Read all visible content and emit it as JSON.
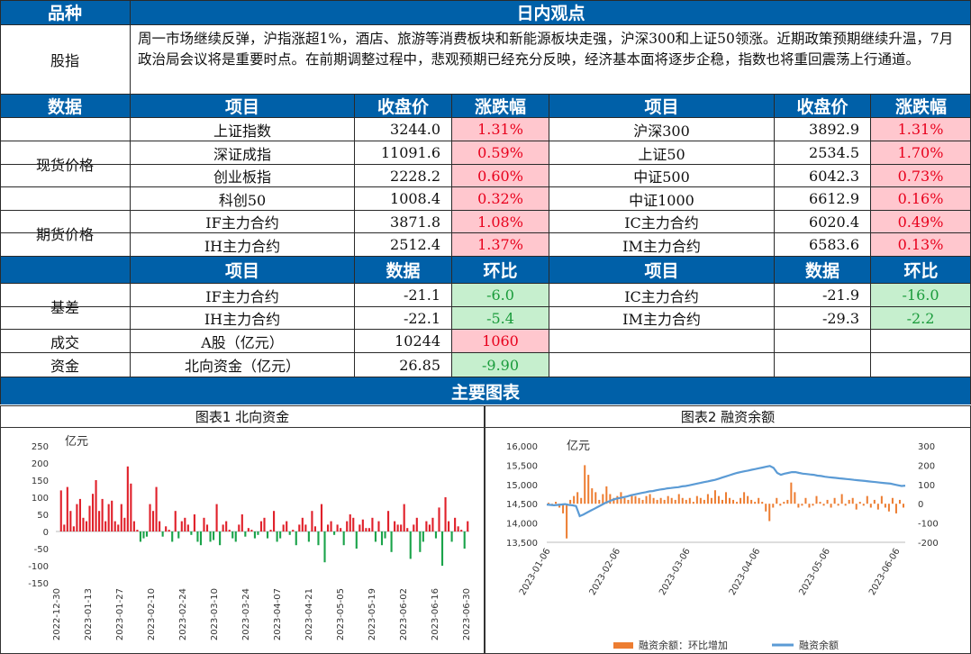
{
  "header": {
    "col1": "品种",
    "col2": "日内观点"
  },
  "index_view": {
    "label": "股指",
    "text": "周一市场继续反弹，沪指涨超1%，酒店、旅游等消费板块和新能源板块走强，沪深300和上证50领涨。近期政策预期继续升温，7月政治局会议将是重要时点。在前期调整过程中，悲观预期已经充分反映，经济基本面将逐步企稳，指数也将重回震荡上行通道。"
  },
  "prices_header": {
    "section": "数据",
    "item": "项目",
    "close": "收盘价",
    "change": "涨跌幅"
  },
  "spot": {
    "label": "现货价格",
    "rows": [
      {
        "l_name": "上证指数",
        "l_close": "3244.0",
        "l_chg": "1.31%",
        "r_name": "沪深300",
        "r_close": "3892.9",
        "r_chg": "1.31%"
      },
      {
        "l_name": "深证成指",
        "l_close": "11091.6",
        "l_chg": "0.59%",
        "r_name": "上证50",
        "r_close": "2534.5",
        "r_chg": "1.70%"
      },
      {
        "l_name": "创业板指",
        "l_close": "2228.2",
        "l_chg": "0.60%",
        "r_name": "中证500",
        "r_close": "6042.3",
        "r_chg": "0.73%"
      },
      {
        "l_name": "科创50",
        "l_close": "1008.4",
        "l_chg": "0.32%",
        "r_name": "中证1000",
        "r_close": "6612.9",
        "r_chg": "0.16%"
      }
    ]
  },
  "futures": {
    "label": "期货价格",
    "rows": [
      {
        "l_name": "IF主力合约",
        "l_close": "3871.8",
        "l_chg": "1.08%",
        "r_name": "IC主力合约",
        "r_close": "6020.4",
        "r_chg": "0.49%"
      },
      {
        "l_name": "IH主力合约",
        "l_close": "2512.4",
        "l_chg": "1.37%",
        "r_name": "IM主力合约",
        "r_close": "6583.6",
        "r_chg": "0.13%"
      }
    ]
  },
  "data_header": {
    "item": "项目",
    "data": "数据",
    "qoq": "环比"
  },
  "basis": {
    "label": "基差",
    "rows": [
      {
        "l_name": "IF主力合约",
        "l_val": "-21.1",
        "l_qoq": "-6.0",
        "r_name": "IC主力合约",
        "r_val": "-21.9",
        "r_qoq": "-16.0"
      },
      {
        "l_name": "IH主力合约",
        "l_val": "-22.1",
        "l_qoq": "-5.4",
        "r_name": "IM主力合约",
        "r_val": "-29.3",
        "r_qoq": "-2.2"
      }
    ]
  },
  "turnover": {
    "label": "成交",
    "name": "A股（亿元）",
    "val": "10244",
    "qoq": "1060"
  },
  "capital": {
    "label": "资金",
    "name": "北向资金（亿元）",
    "val": "26.85",
    "qoq": "-9.90"
  },
  "charts_header": "主要图表",
  "chart_data": [
    {
      "type": "bar",
      "title": "图表1 北向资金",
      "ylabel": "亿元",
      "ylim": [
        -150,
        250
      ],
      "yticks": [
        250,
        200,
        150,
        100,
        50,
        0,
        -50,
        -100,
        -150
      ],
      "xticks": [
        "2022-12-30",
        "2023-01-13",
        "2023-01-27",
        "2023-02-10",
        "2023-02-24",
        "2023-03-10",
        "2023-03-24",
        "2023-04-07",
        "2023-04-21",
        "2023-05-05",
        "2023-05-19",
        "2023-06-02",
        "2023-06-16",
        "2023-06-30"
      ],
      "colors": {
        "positive": "#e0202a",
        "negative": "#1aa34a"
      },
      "values": [
        120,
        20,
        130,
        60,
        15,
        80,
        95,
        40,
        30,
        75,
        110,
        150,
        60,
        95,
        30,
        80,
        90,
        30,
        20,
        80,
        40,
        190,
        140,
        30,
        5,
        -30,
        -20,
        -15,
        80,
        60,
        130,
        30,
        -15,
        15,
        5,
        -30,
        60,
        -20,
        30,
        40,
        20,
        -10,
        50,
        -30,
        -40,
        40,
        20,
        -30,
        -25,
        80,
        -40,
        20,
        30,
        5,
        -20,
        -30,
        20,
        50,
        -15,
        10,
        5,
        -20,
        -10,
        30,
        40,
        -20,
        5,
        60,
        -30,
        -20,
        20,
        30,
        -10,
        5,
        -40,
        20,
        40,
        20,
        -30,
        60,
        15,
        -40,
        80,
        -90,
        20,
        30,
        -10,
        20,
        10,
        -40,
        30,
        50,
        40,
        -50,
        20,
        35,
        10,
        10,
        40,
        -30,
        30,
        -40,
        -20,
        60,
        -60,
        30,
        20,
        20,
        80,
        10,
        -80,
        20,
        40,
        -60,
        -30,
        30,
        20,
        40,
        -20,
        70,
        -100,
        100,
        30,
        -30,
        40,
        15,
        5,
        -50,
        30
      ]
    },
    {
      "type": "line+bar",
      "title": "图表2 融资余额",
      "ylabel": "亿元",
      "ylim_left": [
        13500,
        16000
      ],
      "yticks_left": [
        "16,000",
        "15,500",
        "15,000",
        "14,500",
        "14,000",
        "13,500"
      ],
      "ylim_right": [
        -200,
        300
      ],
      "yticks_right": [
        "300",
        "200",
        "100",
        "0",
        "-100",
        "-200"
      ],
      "xticks": [
        "2023-01-06",
        "2023-02-06",
        "2023-03-06",
        "2023-04-06",
        "2023-05-06",
        "2023-06-06"
      ],
      "legend": [
        "融资余额：环比增加",
        "融资余额"
      ],
      "colors": {
        "bars": "#ed7d31",
        "line": "#5b9bd5"
      },
      "line": [
        14480,
        14470,
        14460,
        14470,
        14480,
        14490,
        14470,
        14460,
        14440,
        14180,
        14220,
        14270,
        14320,
        14370,
        14420,
        14470,
        14520,
        14560,
        14600,
        14630,
        14650,
        14670,
        14690,
        14720,
        14740,
        14760,
        14780,
        14800,
        14820,
        14830,
        14850,
        14870,
        14880,
        14900,
        14910,
        14920,
        14930,
        14950,
        14960,
        14980,
        15000,
        15020,
        15040,
        15060,
        15080,
        15100,
        15120,
        15150,
        15180,
        15210,
        15240,
        15270,
        15300,
        15320,
        15340,
        15360,
        15380,
        15400,
        15420,
        15440,
        15460,
        15480,
        15430,
        15300,
        15250,
        15280,
        15300,
        15320,
        15320,
        15300,
        15280,
        15270,
        15260,
        15250,
        15230,
        15220,
        15200,
        15190,
        15180,
        15170,
        15160,
        15150,
        15140,
        15130,
        15120,
        15110,
        15100,
        15090,
        15080,
        15070,
        15060,
        15050,
        15040,
        15030,
        15020,
        15000,
        14980,
        14960,
        14970
      ],
      "bars": [
        5,
        -5,
        10,
        -20,
        -50,
        -180,
        20,
        40,
        60,
        30,
        200,
        150,
        80,
        60,
        20,
        50,
        90,
        50,
        30,
        40,
        60,
        30,
        20,
        50,
        40,
        30,
        20,
        40,
        50,
        30,
        20,
        30,
        20,
        40,
        30,
        20,
        50,
        30,
        20,
        30,
        10,
        40,
        30,
        20,
        50,
        30,
        70,
        40,
        20,
        60,
        30,
        20,
        10,
        30,
        60,
        40,
        20,
        10,
        30,
        10,
        -40,
        -90,
        -20,
        30,
        -10,
        10,
        20,
        110,
        60,
        -20,
        -10,
        30,
        -20,
        -10,
        40,
        10,
        -10,
        20,
        -20,
        30,
        -10,
        50,
        -10,
        20,
        30,
        -30,
        10,
        -10,
        40,
        -20,
        20,
        -30,
        40,
        -20,
        -40,
        30,
        -50,
        20,
        -20
      ]
    }
  ]
}
